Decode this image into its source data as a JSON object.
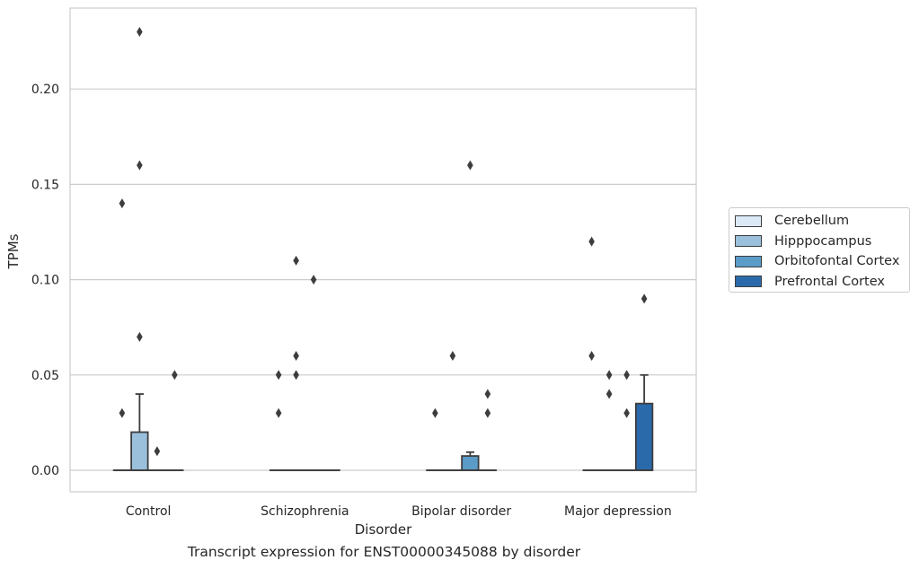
{
  "chart_data": {
    "type": "box",
    "title": "",
    "caption": "Transcript expression for ENST00000345088 by disorder",
    "xlabel": "Disorder",
    "ylabel": "TPMs",
    "ylim": [
      -0.011,
      0.24
    ],
    "yticks": [
      "0.00",
      "0.05",
      "0.10",
      "0.15",
      "0.20"
    ],
    "ytick_values": [
      0.0,
      0.05,
      0.1,
      0.15,
      0.2
    ],
    "grid": true,
    "legend_position": "right",
    "categories": [
      "Control",
      "Schizophrenia",
      "Bipolar disorder",
      "Major depression"
    ],
    "series": [
      {
        "name": "Cerebellum",
        "color": "#dbe9f6",
        "boxes": [
          {
            "q1": 0,
            "median": 0,
            "q3": 0,
            "whisker_low": 0,
            "whisker_high": 0,
            "outliers": [
              0.03,
              0.14
            ]
          },
          {
            "q1": 0,
            "median": 0,
            "q3": 0,
            "whisker_low": 0,
            "whisker_high": 0,
            "outliers": [
              0.03,
              0.05
            ]
          },
          {
            "q1": 0,
            "median": 0,
            "q3": 0,
            "whisker_low": 0,
            "whisker_high": 0,
            "outliers": [
              0.03
            ]
          },
          {
            "q1": 0,
            "median": 0,
            "q3": 0,
            "whisker_low": 0,
            "whisker_high": 0,
            "outliers": [
              0.06,
              0.12
            ]
          }
        ]
      },
      {
        "name": "Hipppocampus",
        "color": "#9ac0db",
        "boxes": [
          {
            "q1": 0,
            "median": 0,
            "q3": 0.02,
            "whisker_low": 0,
            "whisker_high": 0.04,
            "outliers": [
              0.07,
              0.16,
              0.23
            ]
          },
          {
            "q1": 0,
            "median": 0,
            "q3": 0,
            "whisker_low": 0,
            "whisker_high": 0,
            "outliers": [
              0.05,
              0.06,
              0.11
            ]
          },
          {
            "q1": 0,
            "median": 0,
            "q3": 0,
            "whisker_low": 0,
            "whisker_high": 0,
            "outliers": [
              0.06
            ]
          },
          {
            "q1": 0,
            "median": 0,
            "q3": 0,
            "whisker_low": 0,
            "whisker_high": 0,
            "outliers": [
              0.04,
              0.05
            ]
          }
        ]
      },
      {
        "name": "Orbitofontal Cortex",
        "color": "#5b9bc8",
        "boxes": [
          {
            "q1": 0,
            "median": 0,
            "q3": 0,
            "whisker_low": 0,
            "whisker_high": 0,
            "outliers": [
              0.01
            ]
          },
          {
            "q1": 0,
            "median": 0,
            "q3": 0,
            "whisker_low": 0,
            "whisker_high": 0,
            "outliers": [
              0.1
            ]
          },
          {
            "q1": 0,
            "median": 0,
            "q3": 0.0075,
            "whisker_low": 0,
            "whisker_high": 0.0095,
            "outliers": [
              0.16
            ]
          },
          {
            "q1": 0,
            "median": 0,
            "q3": 0,
            "whisker_low": 0,
            "whisker_high": 0,
            "outliers": [
              0.03,
              0.05
            ]
          }
        ]
      },
      {
        "name": "Prefrontal Cortex",
        "color": "#2a6aab",
        "boxes": [
          {
            "q1": 0,
            "median": 0,
            "q3": 0,
            "whisker_low": 0,
            "whisker_high": 0,
            "outliers": [
              0.05
            ]
          },
          {
            "q1": 0,
            "median": 0,
            "q3": 0,
            "whisker_low": 0,
            "whisker_high": 0,
            "outliers": []
          },
          {
            "q1": 0,
            "median": 0,
            "q3": 0,
            "whisker_low": 0,
            "whisker_high": 0,
            "outliers": [
              0.03,
              0.04
            ]
          },
          {
            "q1": 0,
            "median": 0,
            "q3": 0.035,
            "whisker_low": 0,
            "whisker_high": 0.05,
            "outliers": [
              0.09
            ]
          }
        ]
      }
    ]
  }
}
